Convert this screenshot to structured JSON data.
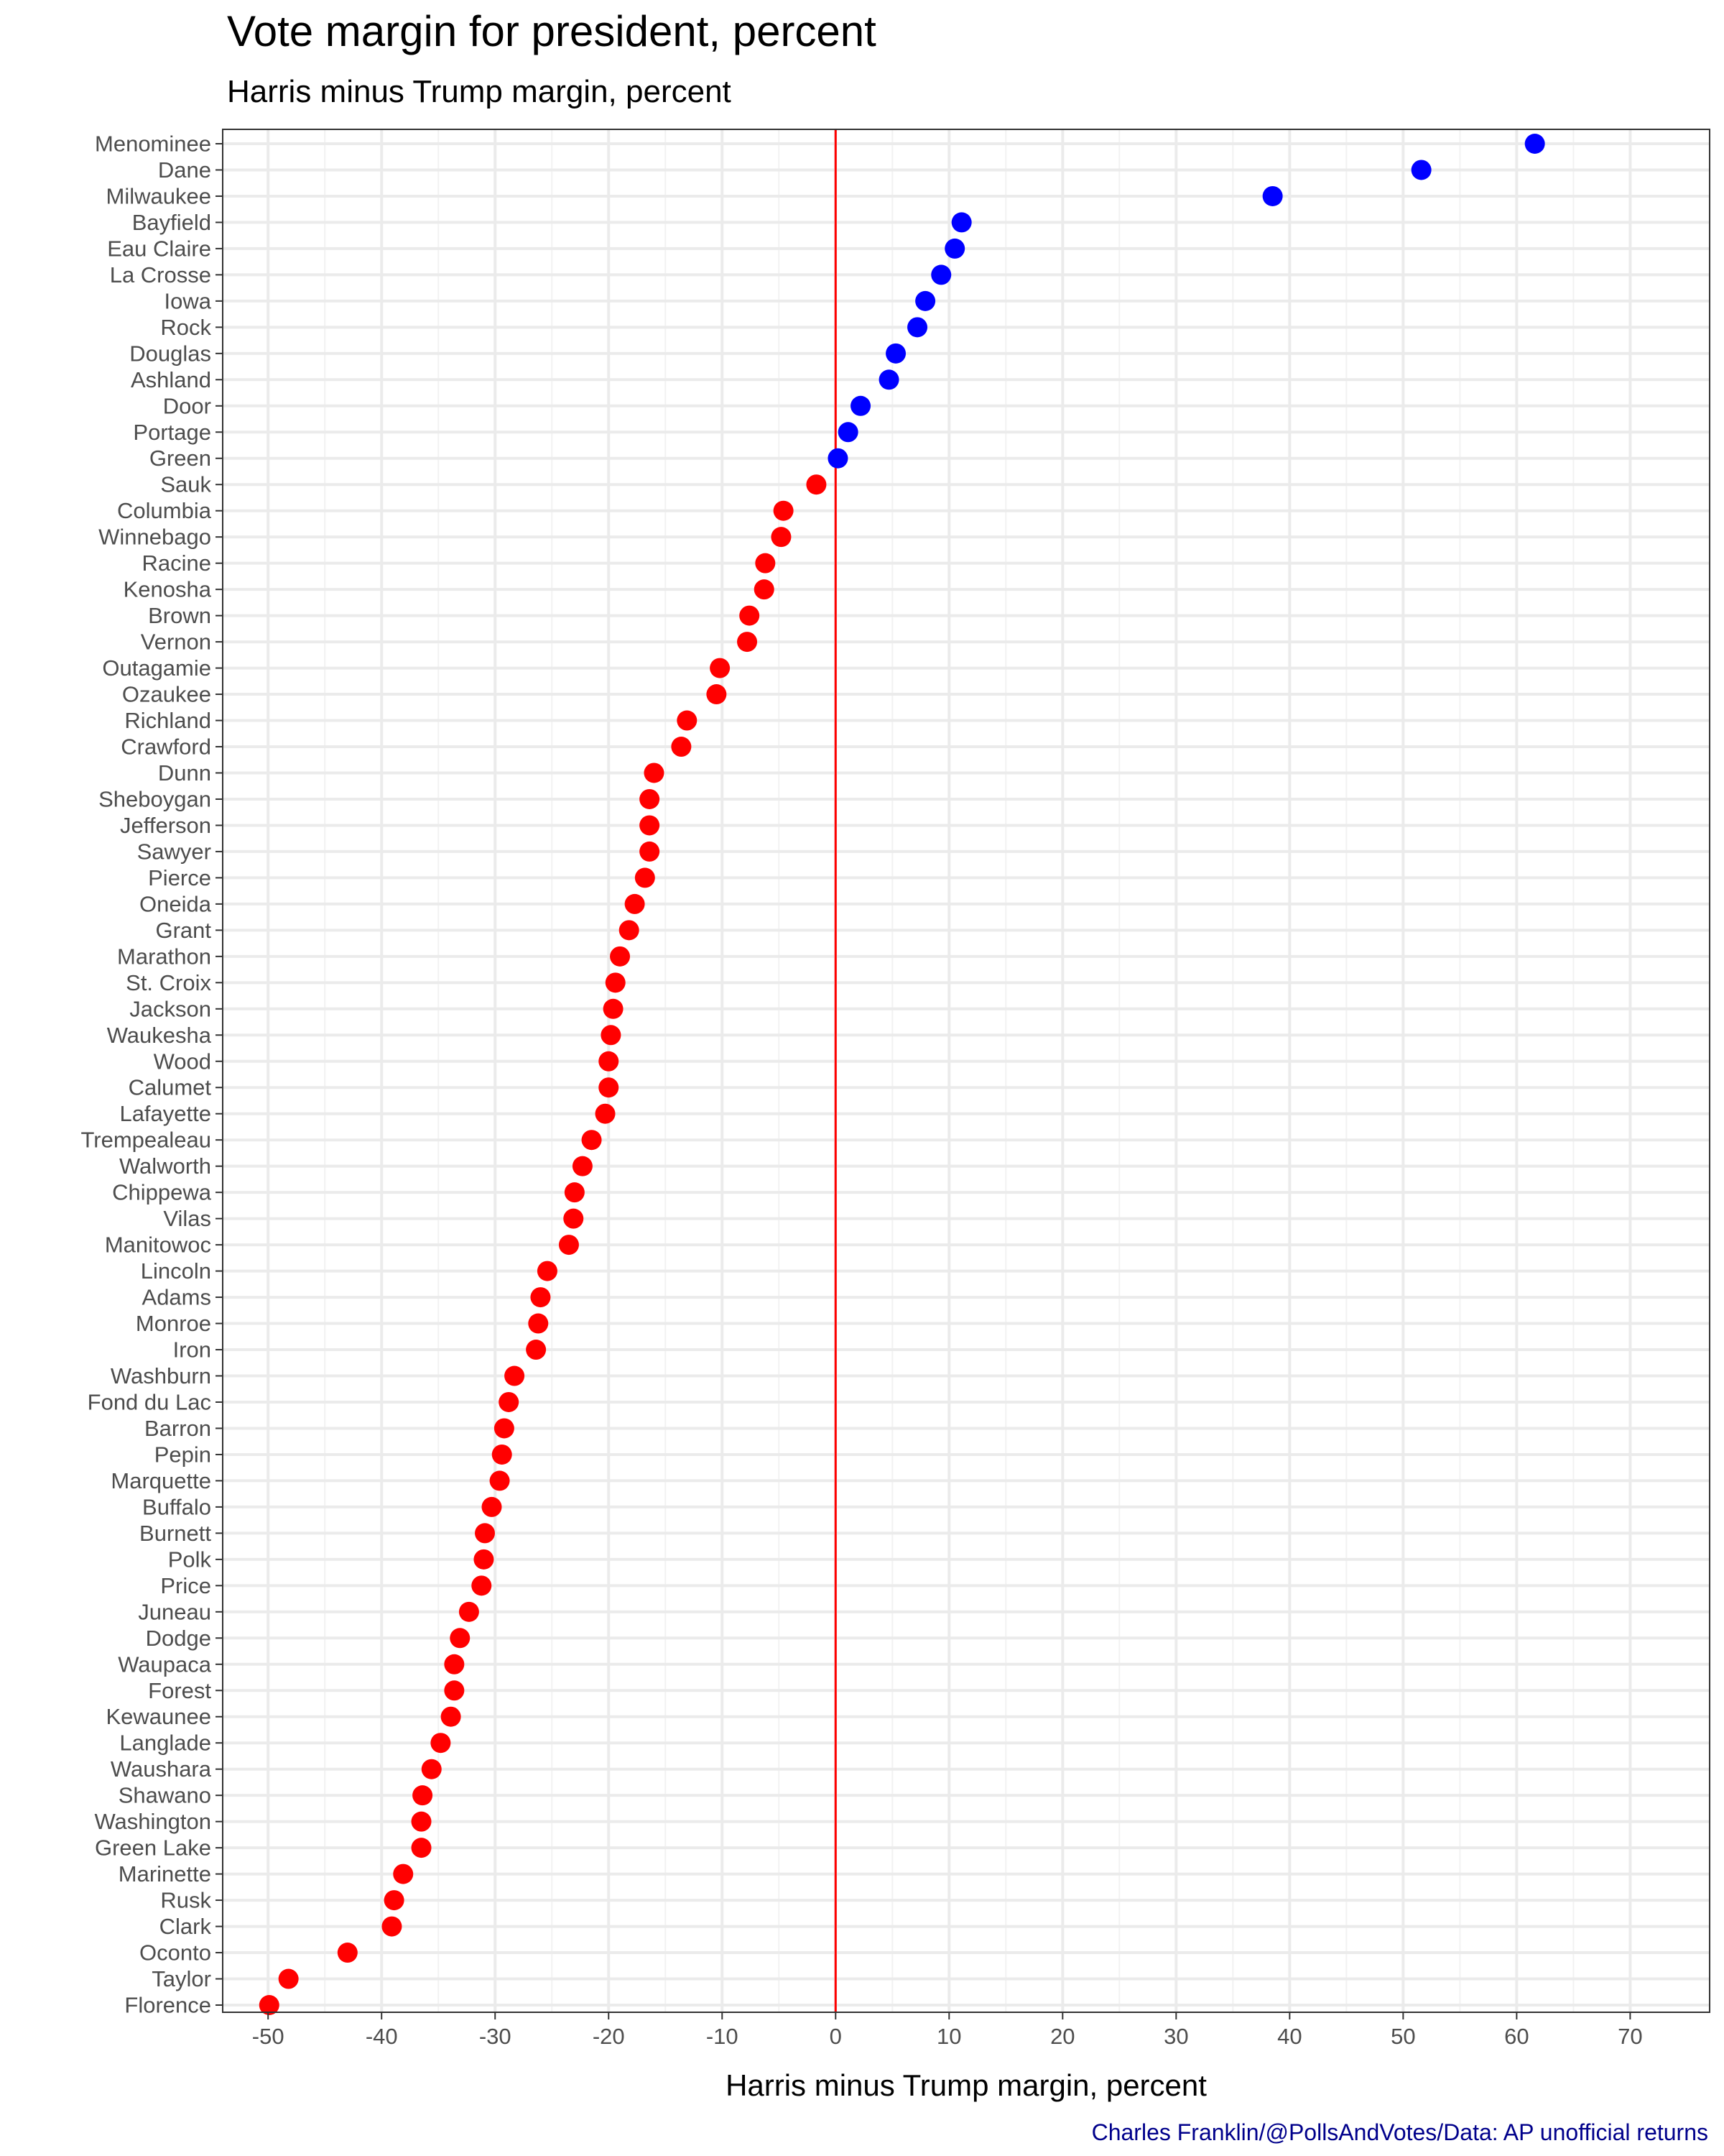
{
  "chart_data": {
    "type": "scatter",
    "title": "Vote margin for president, percent",
    "subtitle": "Harris minus Trump margin, percent",
    "xlabel": "Harris minus Trump margin, percent",
    "ylabel": "",
    "caption": "Charles Franklin/@PollsAndVotes/Data: AP unofficial returns",
    "xlim": [
      -54,
      77
    ],
    "x_ticks": [
      -50,
      -40,
      -30,
      -20,
      -10,
      0,
      10,
      20,
      30,
      40,
      50,
      60,
      70
    ],
    "grid": true,
    "legend": "none",
    "reference_line": {
      "x": 0,
      "color": "#ff0000"
    },
    "colors": {
      "positive": "#0000ff",
      "negative": "#ff0000"
    },
    "points": [
      {
        "county": "Menominee",
        "margin": 61.6
      },
      {
        "county": "Dane",
        "margin": 51.6
      },
      {
        "county": "Milwaukee",
        "margin": 38.5
      },
      {
        "county": "Bayfield",
        "margin": 11.1
      },
      {
        "county": "Eau Claire",
        "margin": 10.5
      },
      {
        "county": "La Crosse",
        "margin": 9.3
      },
      {
        "county": "Iowa",
        "margin": 7.9
      },
      {
        "county": "Rock",
        "margin": 7.2
      },
      {
        "county": "Douglas",
        "margin": 5.3
      },
      {
        "county": "Ashland",
        "margin": 4.7
      },
      {
        "county": "Door",
        "margin": 2.2
      },
      {
        "county": "Portage",
        "margin": 1.1
      },
      {
        "county": "Green",
        "margin": 0.2
      },
      {
        "county": "Sauk",
        "margin": -1.7
      },
      {
        "county": "Columbia",
        "margin": -4.6
      },
      {
        "county": "Winnebago",
        "margin": -4.8
      },
      {
        "county": "Racine",
        "margin": -6.2
      },
      {
        "county": "Kenosha",
        "margin": -6.3
      },
      {
        "county": "Brown",
        "margin": -7.6
      },
      {
        "county": "Vernon",
        "margin": -7.8
      },
      {
        "county": "Outagamie",
        "margin": -10.2
      },
      {
        "county": "Ozaukee",
        "margin": -10.5
      },
      {
        "county": "Richland",
        "margin": -13.1
      },
      {
        "county": "Crawford",
        "margin": -13.6
      },
      {
        "county": "Dunn",
        "margin": -16.0
      },
      {
        "county": "Sheboygan",
        "margin": -16.4
      },
      {
        "county": "Jefferson",
        "margin": -16.4
      },
      {
        "county": "Sawyer",
        "margin": -16.4
      },
      {
        "county": "Pierce",
        "margin": -16.8
      },
      {
        "county": "Oneida",
        "margin": -17.7
      },
      {
        "county": "Grant",
        "margin": -18.2
      },
      {
        "county": "Marathon",
        "margin": -19.0
      },
      {
        "county": "St. Croix",
        "margin": -19.4
      },
      {
        "county": "Jackson",
        "margin": -19.6
      },
      {
        "county": "Waukesha",
        "margin": -19.8
      },
      {
        "county": "Wood",
        "margin": -20.0
      },
      {
        "county": "Calumet",
        "margin": -20.0
      },
      {
        "county": "Lafayette",
        "margin": -20.3
      },
      {
        "county": "Trempealeau",
        "margin": -21.5
      },
      {
        "county": "Walworth",
        "margin": -22.3
      },
      {
        "county": "Chippewa",
        "margin": -23.0
      },
      {
        "county": "Vilas",
        "margin": -23.1
      },
      {
        "county": "Manitowoc",
        "margin": -23.5
      },
      {
        "county": "Lincoln",
        "margin": -25.4
      },
      {
        "county": "Adams",
        "margin": -26.0
      },
      {
        "county": "Monroe",
        "margin": -26.2
      },
      {
        "county": "Iron",
        "margin": -26.4
      },
      {
        "county": "Washburn",
        "margin": -28.3
      },
      {
        "county": "Fond du Lac",
        "margin": -28.8
      },
      {
        "county": "Barron",
        "margin": -29.2
      },
      {
        "county": "Pepin",
        "margin": -29.4
      },
      {
        "county": "Marquette",
        "margin": -29.6
      },
      {
        "county": "Buffalo",
        "margin": -30.3
      },
      {
        "county": "Burnett",
        "margin": -30.9
      },
      {
        "county": "Polk",
        "margin": -31.0
      },
      {
        "county": "Price",
        "margin": -31.2
      },
      {
        "county": "Juneau",
        "margin": -32.3
      },
      {
        "county": "Dodge",
        "margin": -33.1
      },
      {
        "county": "Waupaca",
        "margin": -33.6
      },
      {
        "county": "Forest",
        "margin": -33.6
      },
      {
        "county": "Kewaunee",
        "margin": -33.9
      },
      {
        "county": "Langlade",
        "margin": -34.8
      },
      {
        "county": "Waushara",
        "margin": -35.6
      },
      {
        "county": "Shawano",
        "margin": -36.4
      },
      {
        "county": "Washington",
        "margin": -36.5
      },
      {
        "county": "Green Lake",
        "margin": -36.5
      },
      {
        "county": "Marinette",
        "margin": -38.1
      },
      {
        "county": "Rusk",
        "margin": -38.9
      },
      {
        "county": "Clark",
        "margin": -39.1
      },
      {
        "county": "Oconto",
        "margin": -43.0
      },
      {
        "county": "Taylor",
        "margin": -48.2
      },
      {
        "county": "Florence",
        "margin": -49.9
      }
    ]
  }
}
